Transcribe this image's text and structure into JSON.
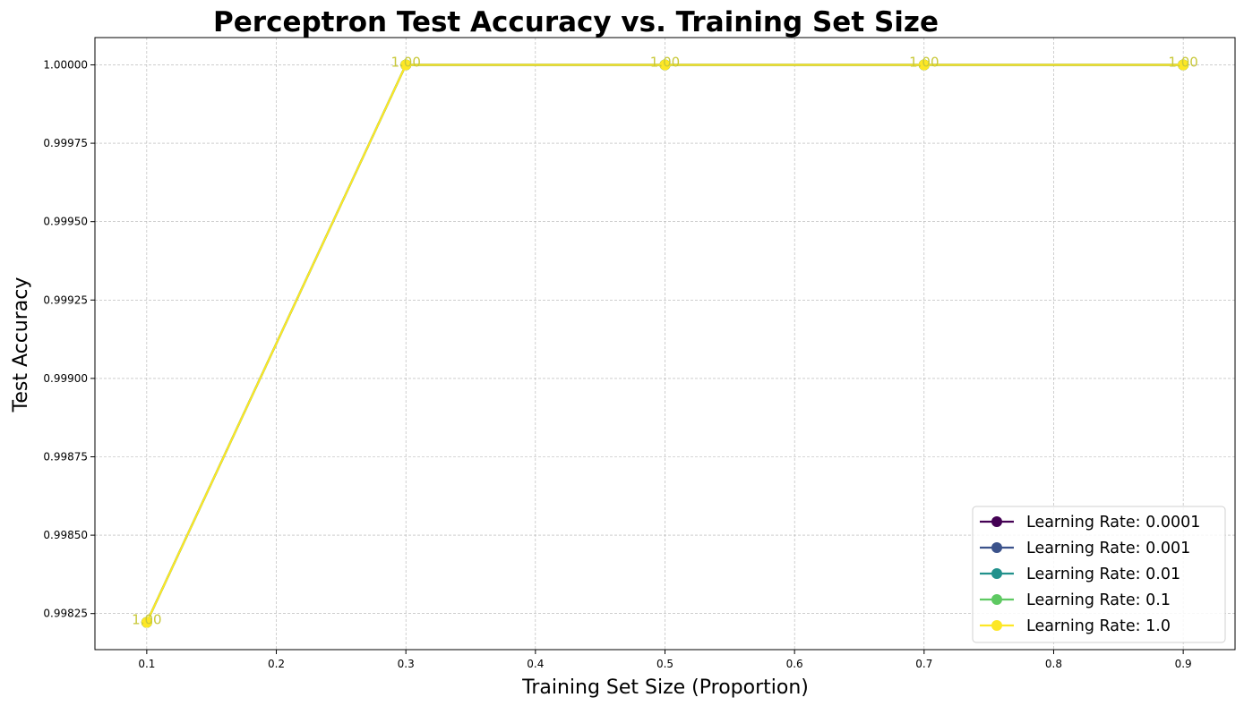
{
  "chart_data": {
    "type": "line",
    "title": "Perceptron Test Accuracy vs. Training Set Size",
    "xlabel": "Training Set Size (Proportion)",
    "ylabel": "Test Accuracy",
    "x": [
      0.1,
      0.3,
      0.5,
      0.7,
      0.9
    ],
    "xlim": [
      0.06,
      0.94
    ],
    "ylim": [
      0.998135,
      1.000087
    ],
    "x_ticks": [
      "0.1",
      "0.2",
      "0.3",
      "0.4",
      "0.5",
      "0.6",
      "0.7",
      "0.8",
      "0.9"
    ],
    "x_tick_values": [
      0.1,
      0.2,
      0.3,
      0.4,
      0.5,
      0.6,
      0.7,
      0.8,
      0.9
    ],
    "y_ticks": [
      "0.99825",
      "0.99850",
      "0.99875",
      "0.99900",
      "0.99925",
      "0.99950",
      "0.99975",
      "1.00000"
    ],
    "y_tick_values": [
      0.99825,
      0.9985,
      0.99875,
      0.999,
      0.99925,
      0.9995,
      0.99975,
      1.0
    ],
    "grid": true,
    "legend_position": "lower-right",
    "series": [
      {
        "name": "Learning Rate: 0.0001",
        "color": "#440154",
        "values": [
          0.998222,
          1.0,
          1.0,
          1.0,
          1.0
        ]
      },
      {
        "name": "Learning Rate: 0.001",
        "color": "#3b528b",
        "values": [
          0.998222,
          1.0,
          1.0,
          1.0,
          1.0
        ]
      },
      {
        "name": "Learning Rate: 0.01",
        "color": "#21918c",
        "values": [
          0.998222,
          1.0,
          1.0,
          1.0,
          1.0
        ]
      },
      {
        "name": "Learning Rate: 0.1",
        "color": "#5ec962",
        "values": [
          0.998222,
          1.0,
          1.0,
          1.0,
          1.0
        ]
      },
      {
        "name": "Learning Rate: 1.0",
        "color": "#fde725",
        "values": [
          0.998222,
          1.0,
          1.0,
          1.0,
          1.0
        ]
      }
    ],
    "data_labels": [
      "1.00",
      "1.00",
      "1.00",
      "1.00",
      "1.00"
    ],
    "data_label_color": "#c8c83a"
  }
}
